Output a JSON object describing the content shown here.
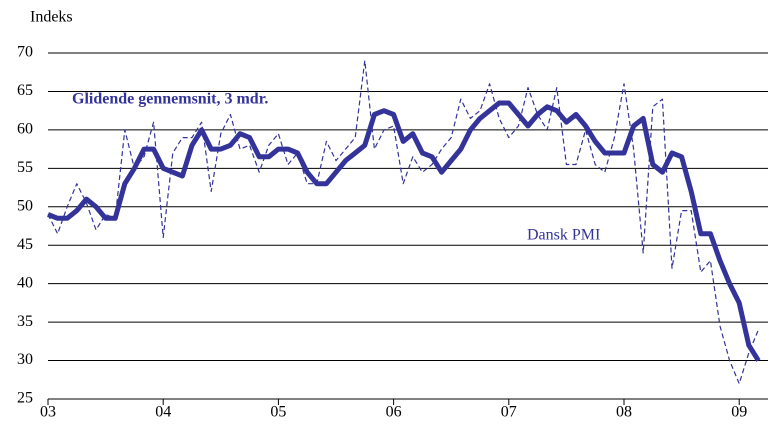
{
  "chart_data": {
    "type": "line",
    "y_label": "Indeks",
    "annotations": [
      "Glidende gennemsnit, 3 mdr.",
      "Dansk PMI"
    ],
    "x": [
      2003,
      2003.083,
      2003.167,
      2003.25,
      2003.333,
      2003.417,
      2003.5,
      2003.583,
      2003.667,
      2003.75,
      2003.833,
      2003.917,
      2004,
      2004.083,
      2004.167,
      2004.25,
      2004.333,
      2004.417,
      2004.5,
      2004.583,
      2004.667,
      2004.75,
      2004.833,
      2004.917,
      2005,
      2005.083,
      2005.167,
      2005.25,
      2005.333,
      2005.417,
      2005.5,
      2005.583,
      2005.667,
      2005.75,
      2005.833,
      2005.917,
      2006,
      2006.083,
      2006.167,
      2006.25,
      2006.333,
      2006.417,
      2006.5,
      2006.583,
      2006.667,
      2006.75,
      2006.833,
      2006.917,
      2007,
      2007.083,
      2007.167,
      2007.25,
      2007.333,
      2007.417,
      2007.5,
      2007.583,
      2007.667,
      2007.75,
      2007.833,
      2007.917,
      2008,
      2008.083,
      2008.167,
      2008.25,
      2008.333,
      2008.417,
      2008.5,
      2008.583,
      2008.667,
      2008.75,
      2008.833,
      2008.917,
      2009,
      2009.083,
      2009.167
    ],
    "series": [
      {
        "name": "Dansk PMI",
        "color": "#333399",
        "style": "dashed",
        "width": 1.2,
        "values": [
          49,
          46.5,
          50,
          53,
          50.5,
          47,
          49,
          48.5,
          60,
          55,
          56.5,
          61,
          46,
          57,
          59,
          59,
          61,
          52,
          59.5,
          62,
          57.5,
          58,
          54.5,
          58,
          59.5,
          55.5,
          57,
          53,
          53,
          58.5,
          56,
          57.5,
          59,
          69,
          57.5,
          60,
          60.5,
          53,
          56.5,
          54.5,
          55.5,
          57.5,
          59,
          64,
          61.5,
          62.5,
          66,
          61.5,
          59,
          60.5,
          65.5,
          62,
          60,
          65.5,
          55.5,
          55.5,
          60,
          55.5,
          54.5,
          59,
          66,
          57.5,
          44,
          63,
          64,
          42,
          49.5,
          49.5,
          41.5,
          43,
          34.5,
          30,
          27,
          31,
          34
        ]
      },
      {
        "name": "Glidende gennemsnit, 3 mdr.",
        "color": "#333399",
        "style": "solid",
        "width": 5,
        "values": [
          49,
          48.5,
          48.5,
          49.5,
          51,
          50,
          48.5,
          48.5,
          53,
          55,
          57.5,
          57.5,
          55,
          54.5,
          54,
          58,
          60,
          57.5,
          57.5,
          58,
          59.5,
          59,
          56.5,
          56.5,
          57.5,
          57.5,
          57,
          54.5,
          53,
          53,
          54.5,
          56,
          57,
          58,
          62,
          62.5,
          62,
          58.5,
          59.5,
          57,
          56.5,
          54.5,
          56,
          57.5,
          60,
          61.5,
          62.5,
          63.5,
          63.5,
          62,
          60.5,
          62,
          63,
          62.5,
          61,
          62,
          60.5,
          58.5,
          57,
          57,
          57,
          60.5,
          61.5,
          55.5,
          54.5,
          57,
          56.5,
          52,
          46.5,
          46.5,
          43,
          40,
          37.5,
          32,
          30
        ]
      }
    ],
    "xlim": [
      2003,
      2009.25
    ],
    "xticks": [
      {
        "value": 2003,
        "label": "03"
      },
      {
        "value": 2004,
        "label": "04"
      },
      {
        "value": 2005,
        "label": "05"
      },
      {
        "value": 2006,
        "label": "06"
      },
      {
        "value": 2007,
        "label": "07"
      },
      {
        "value": 2008,
        "label": "08"
      },
      {
        "value": 2009,
        "label": "09"
      }
    ],
    "ylim": [
      25,
      70
    ],
    "yticks": [
      25,
      30,
      35,
      40,
      45,
      50,
      55,
      60,
      65,
      70
    ],
    "grid": true
  }
}
